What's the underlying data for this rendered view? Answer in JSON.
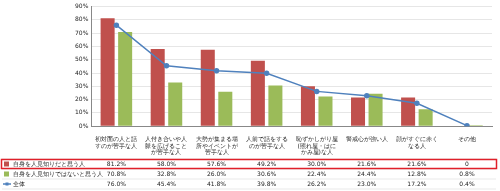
{
  "chart_data": {
    "type": "bar",
    "categories": [
      "初対面の人と話すのが苦手な人",
      "人付き合いや人脈を広げることが苦手な人",
      "大勢が集まる場所やイベントが苦手な人",
      "人前で話をするのが苦手な人",
      "恥ずかしがり屋(照れ屋・はにかみ屋)な人",
      "警戒心が強い人",
      "顔がすぐに赤くなる人",
      "その他"
    ],
    "series": [
      {
        "name": "自身を人見知りだと思う人",
        "type": "bar",
        "color": "#c0504d",
        "values": [
          81.2,
          58.0,
          57.6,
          49.2,
          30.0,
          21.6,
          21.6,
          0
        ],
        "value_labels": [
          "81.2%",
          "58.0%",
          "57.6%",
          "49.2%",
          "30.0%",
          "21.6%",
          "21.6%",
          "0"
        ]
      },
      {
        "name": "自身を人見知りではないと思う人",
        "type": "bar",
        "color": "#9bbb59",
        "values": [
          70.8,
          32.8,
          26.0,
          30.6,
          22.4,
          24.4,
          12.8,
          0.8
        ],
        "value_labels": [
          "70.8%",
          "32.8%",
          "26.0%",
          "30.6%",
          "22.4%",
          "24.4%",
          "12.8%",
          "0.8%"
        ]
      },
      {
        "name": "全体",
        "type": "line",
        "color": "#4f81bd",
        "values": [
          76.0,
          45.4,
          41.8,
          39.8,
          26.2,
          23.0,
          17.2,
          0.4
        ],
        "value_labels": [
          "76.0%",
          "45.4%",
          "41.8%",
          "39.8%",
          "26.2%",
          "23.0%",
          "17.2%",
          "0.4%"
        ]
      }
    ],
    "ylim": [
      0,
      90
    ],
    "yticks": [
      {
        "value": 0,
        "label": "0%"
      },
      {
        "value": 10,
        "label": "10%"
      },
      {
        "value": 20,
        "label": "20%"
      },
      {
        "value": 30,
        "label": "30%"
      },
      {
        "value": 40,
        "label": "40%"
      },
      {
        "value": 50,
        "label": "50%"
      },
      {
        "value": 60,
        "label": "60%"
      },
      {
        "value": 70,
        "label": "70%"
      },
      {
        "value": 80,
        "label": "80%"
      },
      {
        "value": 90,
        "label": "90%"
      }
    ],
    "grid": true,
    "data_labels": true
  }
}
